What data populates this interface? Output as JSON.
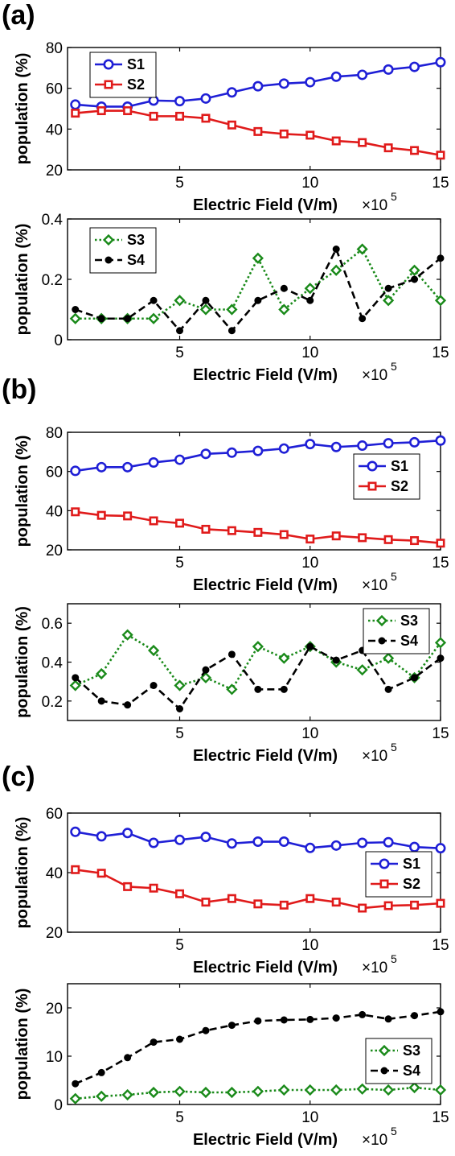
{
  "figure": {
    "panel_labels": [
      "(a)",
      "(b)",
      "(c)"
    ],
    "colors": {
      "S1": "#1f1fd6",
      "S2": "#e01b1b",
      "S3": "#1a8a1a",
      "S4": "#000000"
    }
  },
  "chart_data": [
    {
      "panel": "(a)",
      "type": "line",
      "xlabel": "Electric Field (V/m)",
      "x_multiplier": "×10",
      "x_multiplier_exp": "5",
      "ylabel": "population (%)",
      "xlim": [
        0.7,
        15
      ],
      "ylim": [
        20,
        80
      ],
      "xticks": [
        5,
        10,
        15
      ],
      "yticks": [
        20,
        40,
        60,
        80
      ],
      "legend": "top-left",
      "grid": false,
      "x": [
        1,
        2,
        3,
        4,
        5,
        6,
        7,
        8,
        9,
        10,
        11,
        12,
        13,
        14,
        15
      ],
      "series": [
        {
          "name": "S1",
          "color": "#1f1fd6",
          "marker": "circle",
          "dash": "solid",
          "values": [
            52,
            51,
            51,
            54,
            53.7,
            55,
            58,
            61,
            62.3,
            63,
            65.7,
            66.6,
            69.2,
            70.5,
            72.8
          ]
        },
        {
          "name": "S2",
          "color": "#e01b1b",
          "marker": "square",
          "dash": "solid",
          "values": [
            47.8,
            49,
            49,
            46.3,
            46.3,
            45.3,
            42,
            38.8,
            37.6,
            37,
            34.2,
            33.4,
            30.8,
            29.5,
            27.2
          ]
        }
      ]
    },
    {
      "panel": "(a)",
      "type": "line",
      "xlabel": "Electric Field (V/m)",
      "x_multiplier": "×10",
      "x_multiplier_exp": "5",
      "ylabel": "population (%)",
      "xlim": [
        0.7,
        15
      ],
      "ylim": [
        0,
        0.4
      ],
      "xticks": [
        5,
        10,
        15
      ],
      "yticks": [
        0,
        0.2,
        0.4
      ],
      "legend": "top-left",
      "grid": false,
      "x": [
        1,
        2,
        3,
        4,
        5,
        6,
        7,
        8,
        9,
        10,
        11,
        12,
        13,
        14,
        15
      ],
      "series": [
        {
          "name": "S3",
          "color": "#1a8a1a",
          "marker": "diamond",
          "dash": "dotted",
          "values": [
            0.07,
            0.07,
            0.07,
            0.07,
            0.13,
            0.1,
            0.1,
            0.27,
            0.1,
            0.17,
            0.23,
            0.3,
            0.13,
            0.23,
            0.13
          ]
        },
        {
          "name": "S4",
          "color": "#000000",
          "marker": "dot",
          "dash": "dashed",
          "values": [
            0.1,
            0.07,
            0.07,
            0.13,
            0.03,
            0.13,
            0.03,
            0.13,
            0.17,
            0.13,
            0.3,
            0.07,
            0.17,
            0.2,
            0.27
          ]
        }
      ]
    },
    {
      "panel": "(b)",
      "type": "line",
      "xlabel": "Electric Field (V/m)",
      "x_multiplier": "×10",
      "x_multiplier_exp": "5",
      "ylabel": "population (%)",
      "xlim": [
        0.7,
        15
      ],
      "ylim": [
        20,
        80
      ],
      "xticks": [
        5,
        10,
        15
      ],
      "yticks": [
        20,
        40,
        60,
        80
      ],
      "legend": "right",
      "grid": false,
      "x": [
        1,
        2,
        3,
        4,
        5,
        6,
        7,
        8,
        9,
        10,
        11,
        12,
        13,
        14,
        15
      ],
      "series": [
        {
          "name": "S1",
          "color": "#1f1fd6",
          "marker": "circle",
          "dash": "solid",
          "values": [
            60.3,
            62.2,
            62.2,
            64.6,
            66,
            69,
            69.6,
            70.5,
            71.7,
            74,
            72.5,
            73.2,
            74.4,
            74.9,
            75.8
          ]
        },
        {
          "name": "S2",
          "color": "#e01b1b",
          "marker": "square",
          "dash": "solid",
          "values": [
            39.4,
            37.6,
            37.3,
            34.8,
            33.6,
            30.5,
            29.8,
            28.9,
            27.8,
            25.5,
            27.1,
            26.2,
            25.2,
            24.7,
            23.4
          ]
        }
      ]
    },
    {
      "panel": "(b)",
      "type": "line",
      "xlabel": "Electric Field (V/m)",
      "x_multiplier": "×10",
      "x_multiplier_exp": "5",
      "ylabel": "population (%)",
      "xlim": [
        0.7,
        15
      ],
      "ylim": [
        0.1,
        0.7
      ],
      "xticks": [
        5,
        10,
        15
      ],
      "yticks": [
        0.2,
        0.4,
        0.6
      ],
      "legend": "top-right",
      "grid": false,
      "x": [
        1,
        2,
        3,
        4,
        5,
        6,
        7,
        8,
        9,
        10,
        11,
        12,
        13,
        14,
        15
      ],
      "series": [
        {
          "name": "S3",
          "color": "#1a8a1a",
          "marker": "diamond",
          "dash": "dotted",
          "values": [
            0.28,
            0.34,
            0.54,
            0.46,
            0.28,
            0.32,
            0.26,
            0.48,
            0.42,
            0.48,
            0.4,
            0.36,
            0.42,
            0.32,
            0.5
          ]
        },
        {
          "name": "S4",
          "color": "#000000",
          "marker": "dot",
          "dash": "dashed",
          "values": [
            0.32,
            0.2,
            0.18,
            0.28,
            0.16,
            0.36,
            0.44,
            0.26,
            0.26,
            0.48,
            0.41,
            0.46,
            0.26,
            0.32,
            0.42
          ]
        }
      ]
    },
    {
      "panel": "(c)",
      "type": "line",
      "xlabel": "Electric Field (V/m)",
      "x_multiplier": "×10",
      "x_multiplier_exp": "5",
      "ylabel": "population (%)",
      "xlim": [
        0.7,
        15
      ],
      "ylim": [
        20,
        60
      ],
      "xticks": [
        5,
        10,
        15
      ],
      "yticks": [
        20,
        40,
        60
      ],
      "legend": "right",
      "grid": false,
      "x": [
        1,
        2,
        3,
        4,
        5,
        6,
        7,
        8,
        9,
        10,
        11,
        12,
        13,
        14,
        15
      ],
      "series": [
        {
          "name": "S1",
          "color": "#1f1fd6",
          "marker": "circle",
          "dash": "solid",
          "values": [
            53.7,
            52.2,
            53.3,
            50,
            51,
            52,
            49.8,
            50.4,
            50.4,
            48.3,
            49.1,
            50,
            50.2,
            48.6,
            48.2
          ]
        },
        {
          "name": "S2",
          "color": "#e01b1b",
          "marker": "square",
          "dash": "solid",
          "values": [
            41,
            39.8,
            35.3,
            34.8,
            32.9,
            30.1,
            31.3,
            29.5,
            29.1,
            31.3,
            30.1,
            28.1,
            28.9,
            29.1,
            29.7
          ]
        }
      ]
    },
    {
      "panel": "(c)",
      "type": "line",
      "xlabel": "Electric Field (V/m)",
      "x_multiplier": "×10",
      "x_multiplier_exp": "5",
      "ylabel": "population (%)",
      "xlim": [
        0.7,
        15
      ],
      "ylim": [
        0,
        25
      ],
      "xticks": [
        5,
        10,
        15
      ],
      "yticks": [
        0,
        10,
        20
      ],
      "legend": "right",
      "grid": false,
      "x": [
        1,
        2,
        3,
        4,
        5,
        6,
        7,
        8,
        9,
        10,
        11,
        12,
        13,
        14,
        15
      ],
      "series": [
        {
          "name": "S3",
          "color": "#1a8a1a",
          "marker": "diamond",
          "dash": "dotted",
          "values": [
            1.2,
            1.7,
            2.0,
            2.5,
            2.7,
            2.5,
            2.5,
            2.7,
            3.0,
            3.0,
            3.0,
            3.2,
            3.0,
            3.5,
            3.0
          ]
        },
        {
          "name": "S4",
          "color": "#000000",
          "marker": "dot",
          "dash": "dashed",
          "values": [
            4.3,
            6.6,
            9.7,
            12.9,
            13.5,
            15.3,
            16.4,
            17.3,
            17.5,
            17.6,
            17.9,
            18.6,
            17.7,
            18.4,
            19.2
          ]
        }
      ]
    }
  ]
}
